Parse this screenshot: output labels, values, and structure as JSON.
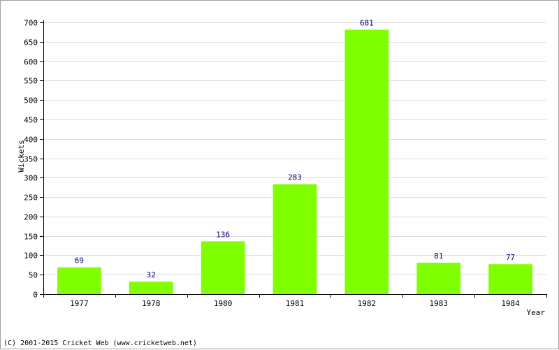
{
  "chart_data": {
    "type": "bar",
    "categories": [
      "1977",
      "1978",
      "1980",
      "1981",
      "1982",
      "1983",
      "1984"
    ],
    "values": [
      69,
      32,
      136,
      283,
      681,
      81,
      77
    ],
    "title": "",
    "xlabel": "Year",
    "ylabel": "Wickets",
    "ylim": [
      0,
      700
    ],
    "yticks": [
      0,
      50,
      100,
      150,
      200,
      250,
      300,
      350,
      400,
      450,
      500,
      550,
      600,
      650,
      700
    ],
    "grid": true,
    "legend": "none",
    "colors": {
      "bar": "#7fff00",
      "data_label": "#000080",
      "grid": "#dcdcdc",
      "axis": "#000000"
    }
  },
  "footer": {
    "copyright": "(C) 2001-2015 Cricket Web (www.cricketweb.net)"
  }
}
